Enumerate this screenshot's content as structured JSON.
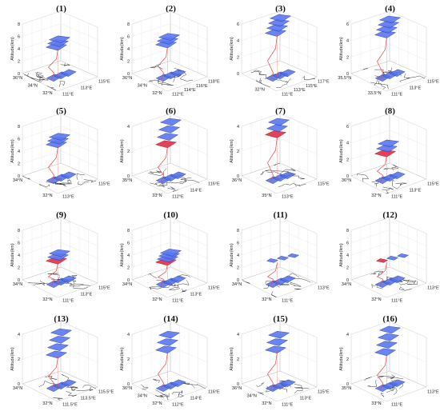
{
  "figure": {
    "panels": [
      {
        "label": "(1)",
        "zlabel": "Altitude(km)",
        "zticks": [
          "0",
          "2",
          "4",
          "6",
          "8"
        ],
        "lat_labels": [
          "36°N",
          "34°N",
          "32°N"
        ],
        "lon_labels": [
          "111°E",
          "113°E",
          "115°E"
        ],
        "layers": [
          4.4,
          5.0,
          5.6
        ],
        "kind": "high"
      },
      {
        "label": "(2)",
        "zlabel": "Altitude(km)",
        "zticks": [
          "0",
          "2",
          "4",
          "6",
          "8"
        ],
        "lat_labels": [
          "36°N",
          "34°N",
          "32°N"
        ],
        "lon_labels": [
          "112°E",
          "114°E",
          "116°E",
          "118°E"
        ],
        "layers": [
          4.8,
          5.4,
          6.0
        ],
        "kind": "high"
      },
      {
        "label": "(3)",
        "zlabel": "Altitude(km)",
        "zticks": [
          "0",
          "2",
          "4",
          "6"
        ],
        "lat_labels": [
          "32°N"
        ],
        "lon_labels": [
          "111°E",
          "113°E",
          "115°E",
          "117°E"
        ],
        "layers": [
          5.0,
          5.6,
          6.2,
          6.8
        ],
        "kind": "high"
      },
      {
        "label": "(4)",
        "zlabel": "Altitude(km)",
        "zticks": [
          "0",
          "2",
          "4",
          "6"
        ],
        "lat_labels": [
          "35.5°N",
          "33.5°N"
        ],
        "lon_labels": [
          "111°E",
          "113°E",
          "115°E"
        ],
        "layers": [
          4.8,
          5.4,
          6.0,
          6.6
        ],
        "kind": "high"
      },
      {
        "label": "(5)",
        "zlabel": "Altitude(km)",
        "zticks": [
          "0",
          "2",
          "4",
          "6",
          "8"
        ],
        "lat_labels": [
          "34°N",
          "32°N"
        ],
        "lon_labels": [
          "113°E",
          "115°E"
        ],
        "layers": [
          5.2,
          5.8,
          6.4
        ],
        "kind": "high"
      },
      {
        "label": "(6)",
        "zlabel": "Altitude(km)",
        "zticks": [
          "0",
          "2",
          "4"
        ],
        "lat_labels": [
          "35°N",
          "33°N"
        ],
        "lon_labels": [
          "112°E",
          "114°E",
          "116°E"
        ],
        "layers": [
          2.6,
          3.2,
          3.8,
          4.4
        ],
        "kind": "red"
      },
      {
        "label": "(7)",
        "zlabel": "Altitude(km)",
        "zticks": [
          "0",
          "2",
          "4"
        ],
        "lat_labels": [
          "36°N",
          "35°N"
        ],
        "lon_labels": [
          "113°E",
          "115°E"
        ],
        "layers": [
          3.4,
          3.9,
          4.4
        ],
        "kind": "red"
      },
      {
        "label": "(8)",
        "zlabel": "Altitude(km)",
        "zticks": [
          "0",
          "2",
          "4",
          "6"
        ],
        "lat_labels": [
          "36°N",
          "32°N"
        ],
        "lon_labels": [
          "111°E",
          "113°E",
          "115°E"
        ],
        "layers": [
          2.8,
          3.4,
          4.0
        ],
        "kind": "red"
      },
      {
        "label": "(9)",
        "zlabel": "Altitude(km)",
        "zticks": [
          "0",
          "2",
          "4",
          "6",
          "8"
        ],
        "lat_labels": [
          "34°N",
          "32°N"
        ],
        "lon_labels": [
          "111°E",
          "113°E",
          "115°E"
        ],
        "layers": [
          3.2,
          3.8,
          4.4
        ],
        "kind": "red"
      },
      {
        "label": "(10)",
        "zlabel": "Altitude(km)",
        "zticks": [
          "0",
          "2",
          "4",
          "6",
          "8"
        ],
        "lat_labels": [
          "34°N",
          "32°N"
        ],
        "lon_labels": [
          "111°E",
          "113°E",
          "115°E"
        ],
        "layers": [
          3.0,
          3.5,
          4.0,
          4.5
        ],
        "kind": "red"
      },
      {
        "label": "(11)",
        "zlabel": "Altitude(km)",
        "zticks": [
          "0",
          "2",
          "4",
          "6",
          "8"
        ],
        "lat_labels": [
          "34°N",
          "32°N"
        ],
        "lon_labels": [
          "111°E",
          "113°E"
        ],
        "layers": [
          3.2,
          3.6,
          4.0
        ],
        "kind": "spread"
      },
      {
        "label": "(12)",
        "zlabel": "Altitude(km)",
        "zticks": [
          "0",
          "2",
          "4",
          "6",
          "8"
        ],
        "lat_labels": [
          "34°N",
          "32°N"
        ],
        "lon_labels": [
          "111°E",
          "113°E"
        ],
        "layers": [
          3.2,
          3.6,
          4.0
        ],
        "kind": "spreadred"
      },
      {
        "label": "(13)",
        "zlabel": "Altitude(km)",
        "zticks": [
          "0",
          "2",
          "4"
        ],
        "lat_labels": [
          "34°N",
          "32°N"
        ],
        "lon_labels": [
          "111.5°E",
          "113.5°E",
          "115.5°E"
        ],
        "layers": [
          2.4,
          3.0,
          3.6,
          4.2
        ],
        "kind": "stack"
      },
      {
        "label": "(14)",
        "zlabel": "Altitude(km)",
        "zticks": [
          "0",
          "2",
          "4"
        ],
        "lat_labels": [
          "36°N",
          "34°N",
          "32°N"
        ],
        "lon_labels": [
          "112°E",
          "114°E",
          "116°E"
        ],
        "layers": [
          2.8,
          3.4,
          4.0
        ],
        "kind": "high"
      },
      {
        "label": "(15)",
        "zlabel": "Altitude(km)",
        "zticks": [
          "0",
          "2",
          "4"
        ],
        "lat_labels": [
          "36°N",
          "34°N",
          "32°N"
        ],
        "lon_labels": [
          "111°E",
          "113°E",
          "115°E"
        ],
        "layers": [
          2.8,
          3.4,
          4.0
        ],
        "kind": "high"
      },
      {
        "label": "(16)",
        "zlabel": "Altitude(km)",
        "zticks": [
          "0",
          "2",
          "4"
        ],
        "lat_labels": [
          "35°N",
          "33°N"
        ],
        "lon_labels": [
          "111°E",
          "113°E"
        ],
        "layers": [
          2.6,
          3.2,
          3.8,
          4.4
        ],
        "kind": "high"
      }
    ]
  },
  "chart_data": {
    "type": "scatter",
    "description_series": "3D cloud-layer snapshots over a lat/lon base map with altitude axis",
    "zlabel": "Altitude(km)",
    "panels": [
      "(1)",
      "(2)",
      "(3)",
      "(4)",
      "(5)",
      "(6)",
      "(7)",
      "(8)",
      "(9)",
      "(10)",
      "(11)",
      "(12)",
      "(13)",
      "(14)",
      "(15)",
      "(16)"
    ]
  }
}
